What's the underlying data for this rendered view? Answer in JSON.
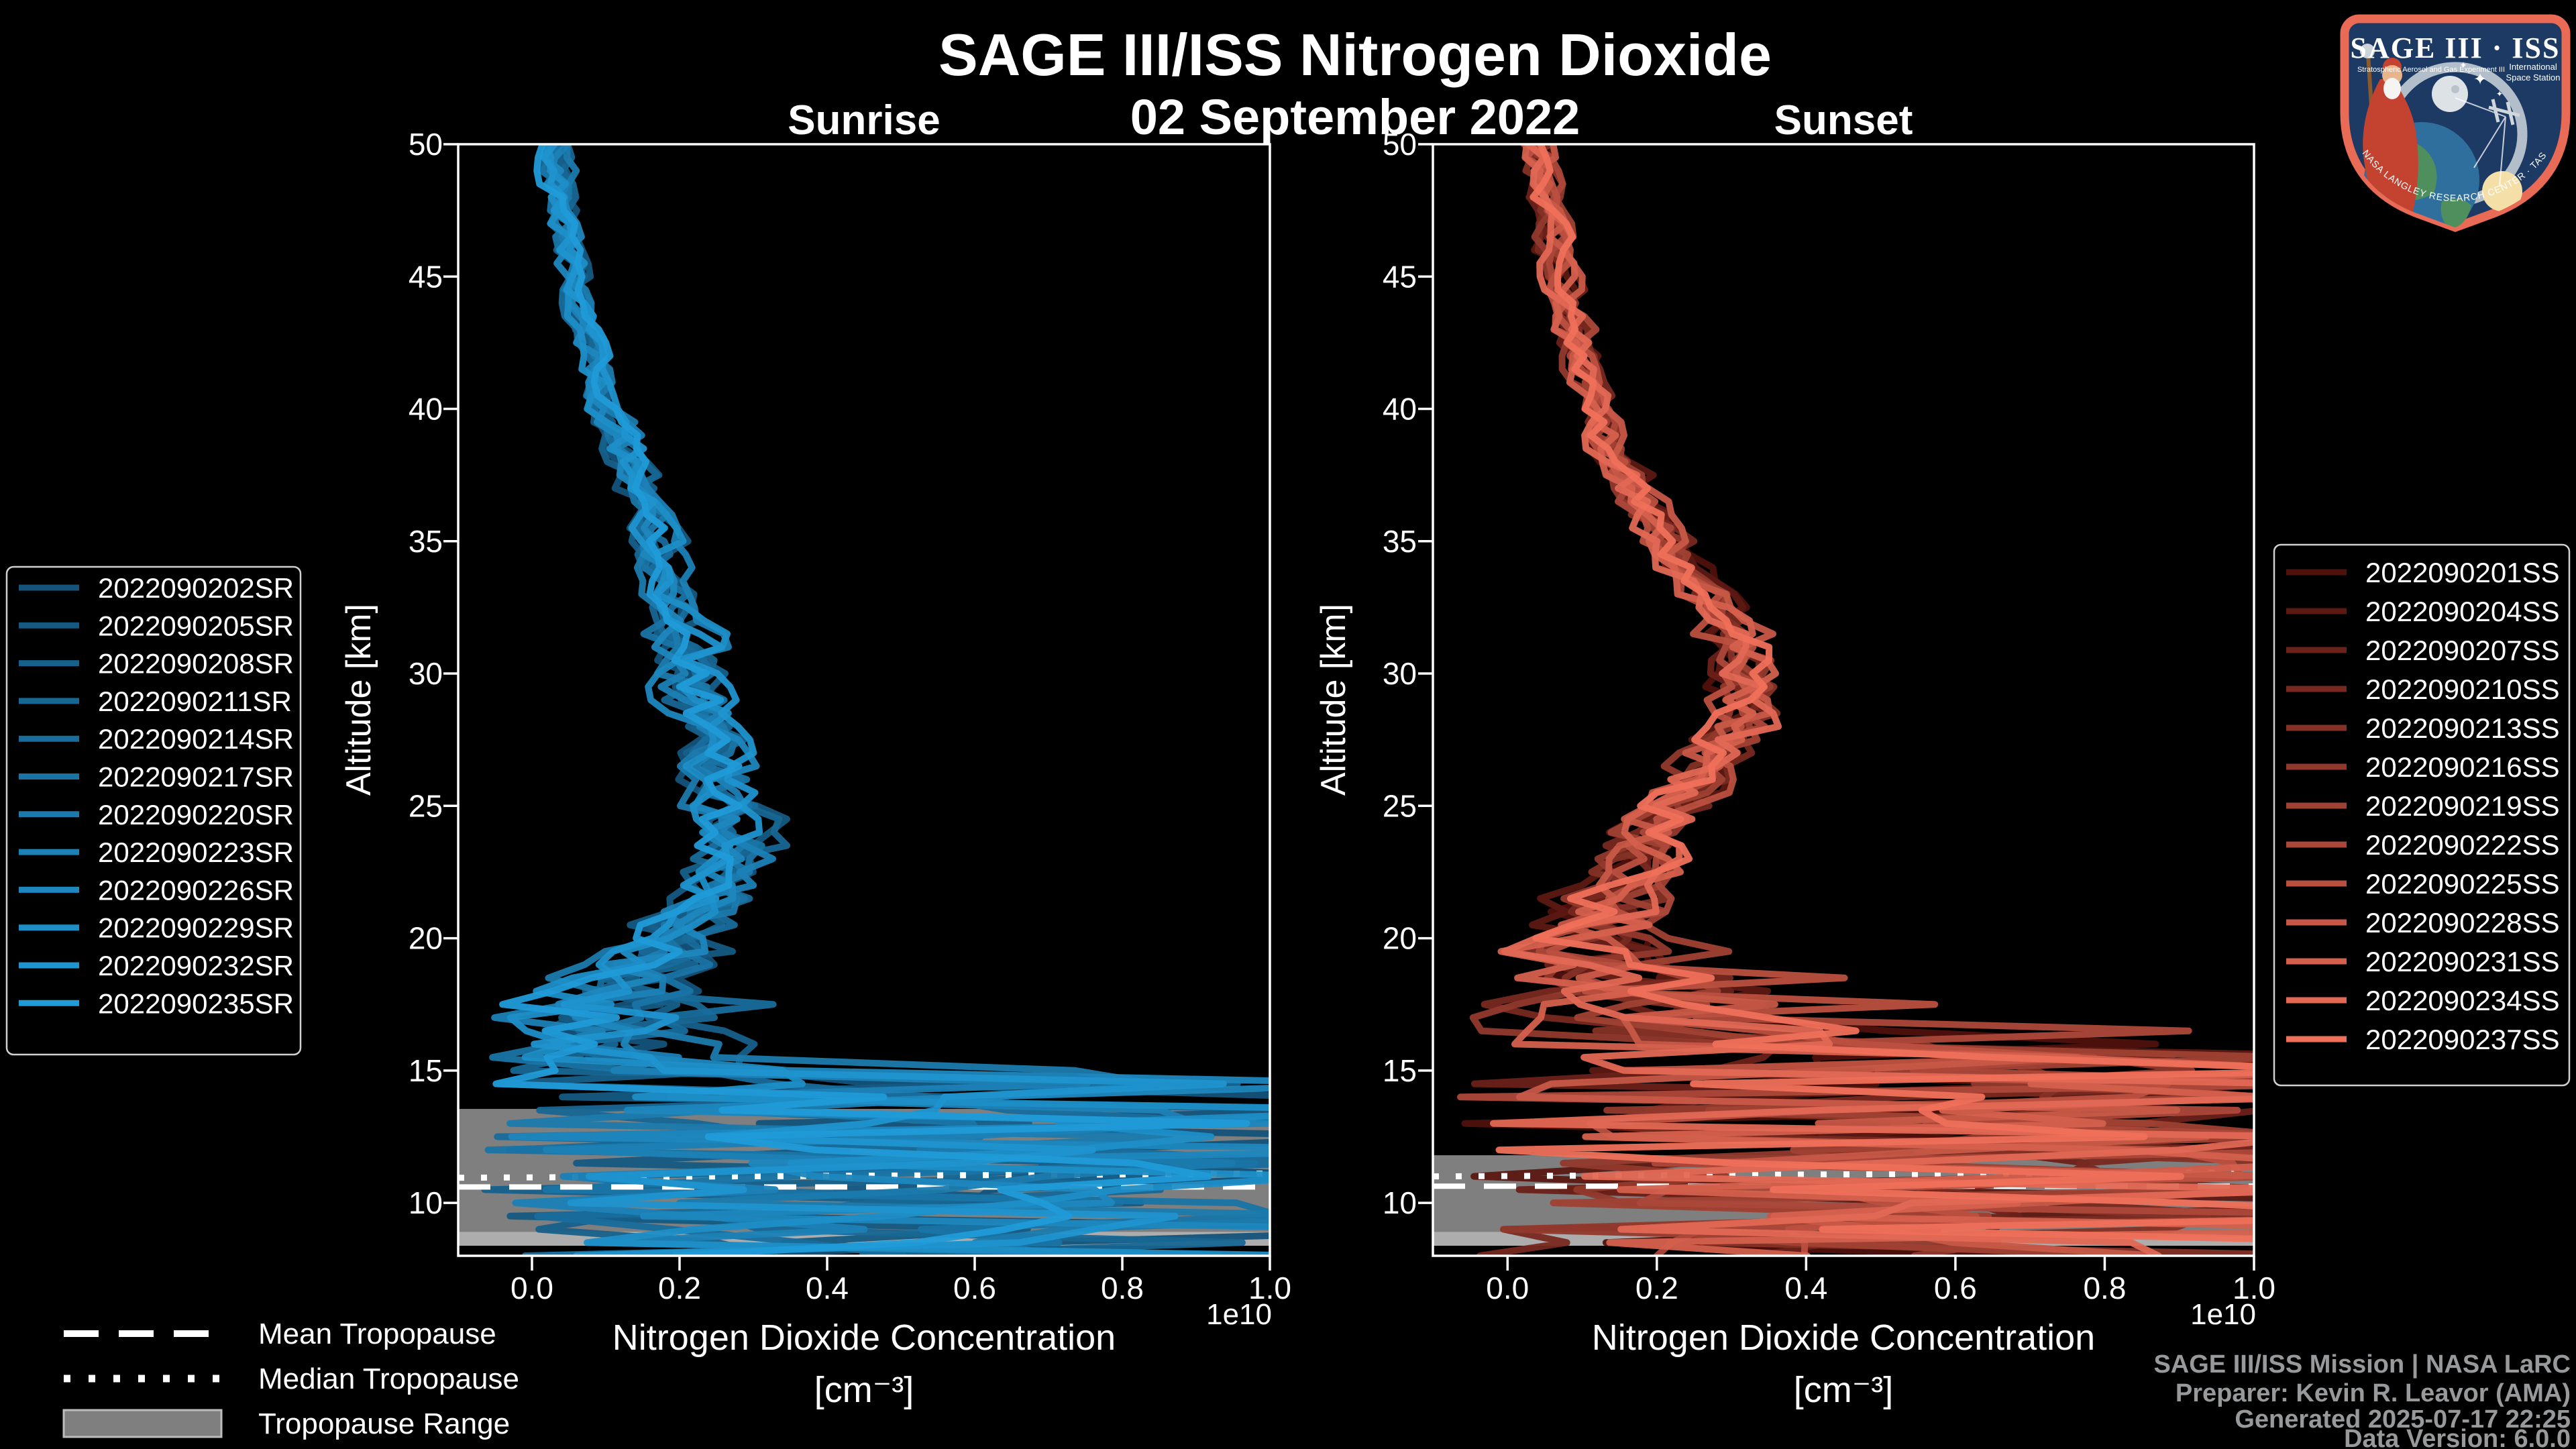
{
  "title": "SAGE III/ISS Nitrogen Dioxide",
  "subtitle_date": "02 September 2022",
  "panels": {
    "left_title": "Sunrise",
    "right_title": "Sunset"
  },
  "axes": {
    "y_label": "Altitude [km]",
    "x_label_line1": "Nitrogen Dioxide Concentration",
    "x_label_line2": "[cm⁻³]",
    "offset_label": "1e10",
    "x_tick_labels": [
      "0.0",
      "0.2",
      "0.4",
      "0.6",
      "0.8",
      "1.0"
    ],
    "y_tick_labels": [
      "10",
      "15",
      "20",
      "25",
      "30",
      "35",
      "40",
      "45",
      "50"
    ]
  },
  "legend_sunrise": [
    "2022090202SR",
    "2022090205SR",
    "2022090208SR",
    "2022090211SR",
    "2022090214SR",
    "2022090217SR",
    "2022090220SR",
    "2022090223SR",
    "2022090226SR",
    "2022090229SR",
    "2022090232SR",
    "2022090235SR"
  ],
  "legend_sunset": [
    "2022090201SS",
    "2022090204SS",
    "2022090207SS",
    "2022090210SS",
    "2022090213SS",
    "2022090216SS",
    "2022090219SS",
    "2022090222SS",
    "2022090225SS",
    "2022090228SS",
    "2022090231SS",
    "2022090234SS",
    "2022090237SS"
  ],
  "tropopause_legend": [
    "Mean Tropopause",
    "Median Tropopause",
    "Tropopause Range"
  ],
  "footer": [
    "SAGE III/ISS Mission | NASA LaRC",
    "Preparer: Kevin R. Leavor (AMA)",
    "Generated 2025-07-17 22:25",
    "Data Version: 6.0.0"
  ],
  "logo": {
    "title": "SAGE III · ISS",
    "sub_left": "Stratospheric Aerosol and Gas Experiment III",
    "sub_right1": "International",
    "sub_right2": "Space Station",
    "ring_text": "BALL · NASA LANGLEY RESEARCH CENTER · TAS-I · ESA"
  },
  "colors": {
    "background": "#000000",
    "axis": "#ffffff",
    "footer_text": "#97999b",
    "tropopause_band": "#7f7f7f",
    "tropopause_band_edge": "#adadad",
    "tropopause_lines": "#ffffff",
    "legend_border": "#d0d0d0",
    "logo_border": "#e96a55",
    "logo_bg": "#1c3a63"
  },
  "chart_data": [
    {
      "type": "line",
      "panel": "sunrise",
      "title": "Sunrise",
      "xlabel": "Nitrogen Dioxide Concentration [cm⁻³]",
      "ylabel": "Altitude [km]",
      "x_scale": "1e10",
      "xlim": [
        -0.1,
        1.0
      ],
      "ylim": [
        8,
        50
      ],
      "x_ticks": [
        0.0,
        0.2,
        0.4,
        0.6,
        0.8,
        1.0
      ],
      "y_ticks": [
        10,
        15,
        20,
        25,
        30,
        35,
        40,
        45,
        50
      ],
      "grid": false,
      "legend_position": "outside-left",
      "series_names": [
        "2022090202SR",
        "2022090205SR",
        "2022090208SR",
        "2022090211SR",
        "2022090214SR",
        "2022090217SR",
        "2022090220SR",
        "2022090223SR",
        "2022090226SR",
        "2022090229SR",
        "2022090232SR",
        "2022090235SR"
      ],
      "color_ramp": [
        "#14537a",
        "#209bd8"
      ],
      "seed_base": 41,
      "seed_step": 101,
      "base_profile": {
        "altitude_km": [
          50,
          48,
          46,
          44,
          42,
          40,
          38,
          36,
          34,
          32,
          30,
          28,
          26,
          24.5,
          23.5,
          22,
          21,
          20,
          19,
          18,
          17,
          16,
          15,
          14,
          13,
          12,
          11,
          10,
          9,
          8
        ],
        "value_1e10": [
          0.03,
          0.04,
          0.05,
          0.06,
          0.08,
          0.1,
          0.13,
          0.16,
          0.18,
          0.2,
          0.21,
          0.23,
          0.26,
          0.28,
          0.28,
          0.25,
          0.23,
          0.19,
          0.15,
          0.12,
          0.1,
          0.1,
          0.13,
          0.22,
          0.3,
          0.33,
          0.38,
          0.42,
          0.45,
          0.4
        ]
      },
      "jitter_bands": [
        [
          40,
          51,
          0.022
        ],
        [
          32,
          40,
          0.032
        ],
        [
          26,
          32,
          0.05
        ],
        [
          22,
          26,
          0.062
        ],
        [
          20,
          22,
          0.075
        ],
        [
          18,
          20,
          0.1
        ],
        [
          16,
          18,
          0.16
        ],
        [
          15,
          16,
          0.24
        ],
        [
          8,
          15,
          0.3
        ]
      ],
      "chaos_below_km": 14.8,
      "chaos_range": [
        -0.07,
        1.27
      ],
      "spike_below_km": 18,
      "spike_prob": 0.06,
      "spike_add": 0.32,
      "tropopause": {
        "mean_km": 10.6,
        "median_km": 10.95,
        "range_top_km": 13.55,
        "range_bottom_km": 8.91,
        "range_edge_bottom_km": 8.38
      }
    },
    {
      "type": "line",
      "panel": "sunset",
      "title": "Sunset",
      "xlabel": "Nitrogen Dioxide Concentration [cm⁻³]",
      "ylabel": "Altitude [km]",
      "x_scale": "1e10",
      "xlim": [
        -0.1,
        1.0
      ],
      "ylim": [
        8,
        50
      ],
      "x_ticks": [
        0.0,
        0.2,
        0.4,
        0.6,
        0.8,
        1.0
      ],
      "y_ticks": [
        10,
        15,
        20,
        25,
        30,
        35,
        40,
        45,
        50
      ],
      "grid": false,
      "legend_position": "outside-right",
      "series_names": [
        "2022090201SS",
        "2022090204SS",
        "2022090207SS",
        "2022090210SS",
        "2022090213SS",
        "2022090216SS",
        "2022090219SS",
        "2022090222SS",
        "2022090225SS",
        "2022090228SS",
        "2022090231SS",
        "2022090234SS",
        "2022090237SS"
      ],
      "color_ramp": [
        "#4f110c",
        "#ef705a"
      ],
      "seed_base": 7,
      "seed_step": 97,
      "base_profile": {
        "altitude_km": [
          50,
          48,
          46,
          44,
          42,
          40,
          38,
          36,
          34,
          32,
          30,
          28,
          26,
          24,
          22,
          21,
          20,
          19,
          18,
          17,
          16,
          15,
          14,
          13,
          12,
          11,
          10,
          9,
          8
        ],
        "value_1e10": [
          0.04,
          0.05,
          0.06,
          0.08,
          0.1,
          0.12,
          0.15,
          0.19,
          0.24,
          0.3,
          0.33,
          0.3,
          0.25,
          0.2,
          0.16,
          0.14,
          0.13,
          0.13,
          0.15,
          0.18,
          0.22,
          0.27,
          0.32,
          0.38,
          0.42,
          0.44,
          0.46,
          0.48,
          0.42
        ]
      },
      "jitter_bands": [
        [
          40,
          51,
          0.025
        ],
        [
          32,
          40,
          0.035
        ],
        [
          26,
          32,
          0.05
        ],
        [
          22,
          26,
          0.06
        ],
        [
          20,
          22,
          0.09
        ],
        [
          19,
          20,
          0.14
        ],
        [
          17,
          19,
          0.22
        ],
        [
          8,
          17,
          0.3
        ]
      ],
      "chaos_below_km": 15.5,
      "chaos_range": [
        -0.07,
        1.27
      ],
      "spike_below_km": 20,
      "spike_prob": 0.08,
      "spike_add": 0.38,
      "tropopause": {
        "mean_km": 10.63,
        "median_km": 11.0,
        "range_top_km": 11.8,
        "range_bottom_km": 8.91,
        "range_edge_bottom_km": 8.38
      }
    }
  ]
}
